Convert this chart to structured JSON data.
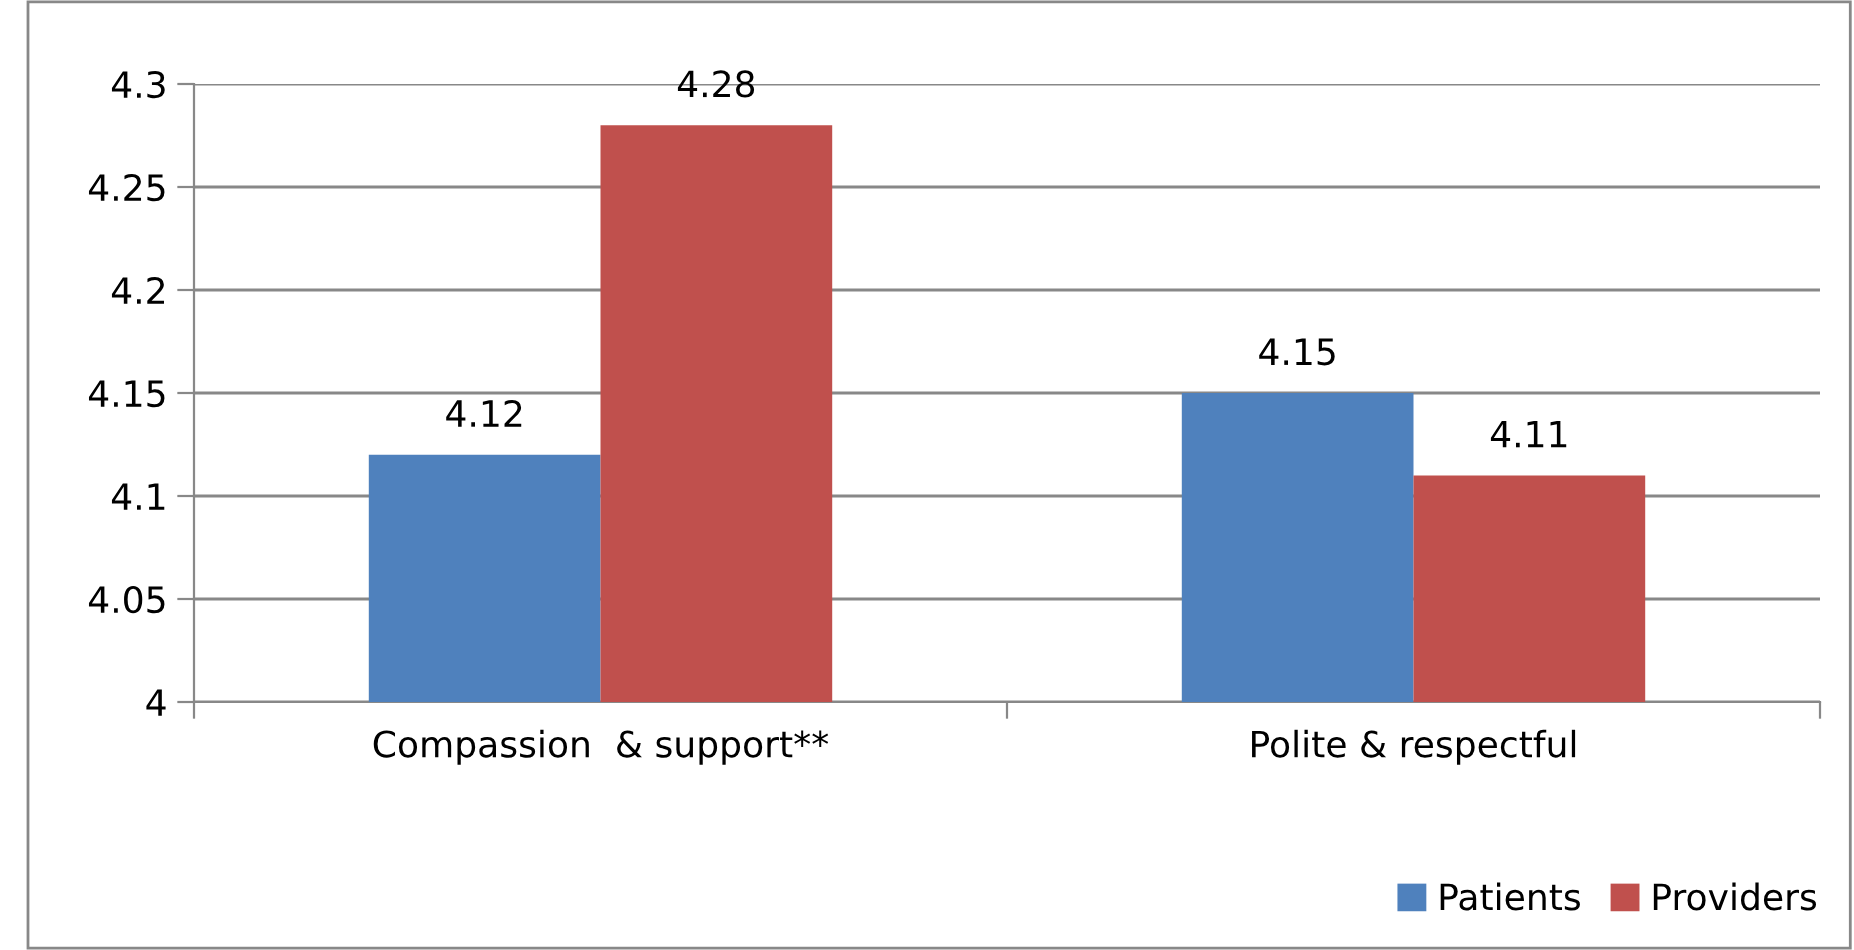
{
  "chart_data": {
    "type": "bar",
    "categories": [
      "Compassion  & support**",
      "Polite & respectful"
    ],
    "series": [
      {
        "name": "Patients",
        "color": "#4f81bd",
        "values": [
          4.12,
          4.15
        ]
      },
      {
        "name": "Providers",
        "color": "#c0504d",
        "values": [
          4.28,
          4.11
        ]
      }
    ],
    "ylim": [
      4,
      4.3
    ],
    "yticks": [
      4,
      4.05,
      4.1,
      4.15,
      4.2,
      4.25,
      4.3
    ],
    "grid": "y",
    "data_labels": true,
    "legend": "bottom right"
  }
}
